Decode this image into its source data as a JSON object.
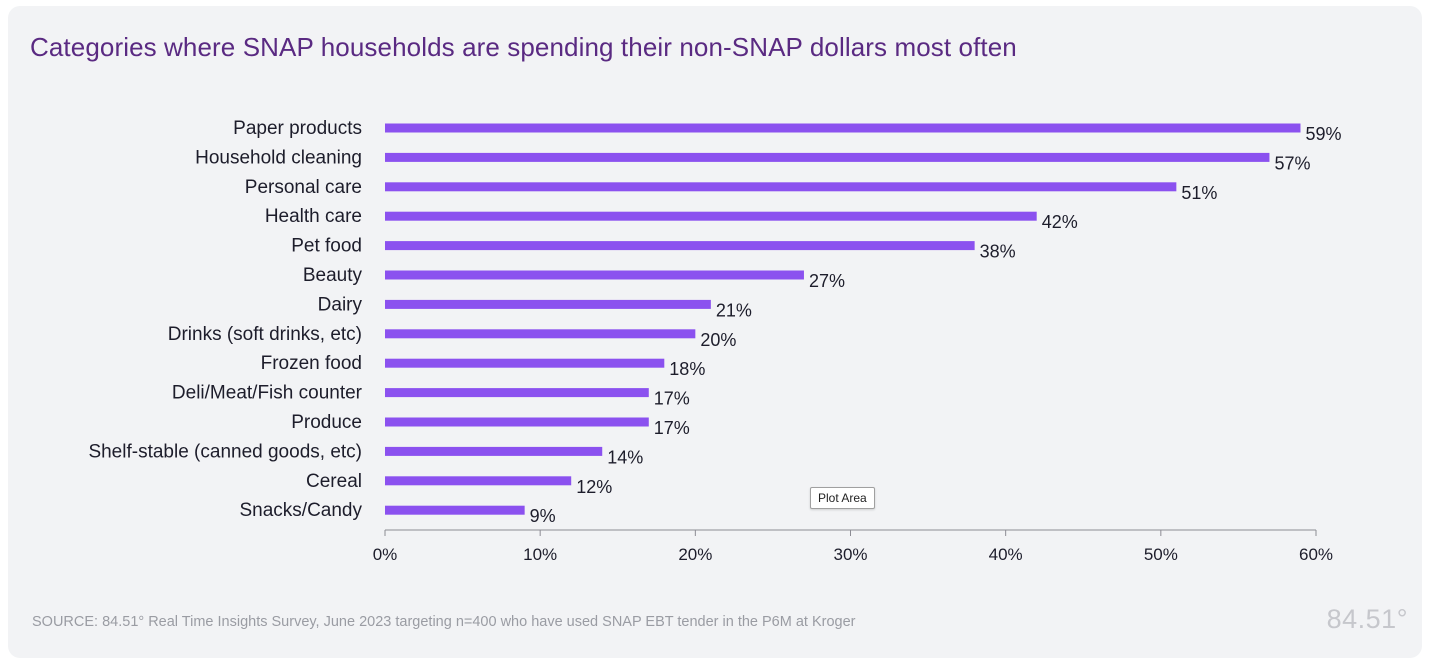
{
  "title": "Categories where SNAP households are spending their non-SNAP dollars most often",
  "source": "SOURCE:  84.51° Real Time Insights Survey, June 2023 targeting n=400 who have used SNAP EBT tender in the P6M at Kroger",
  "logo_text": "84.51°",
  "tooltip": "Plot Area",
  "colors": {
    "bar": "#8b51ef",
    "title": "#5a2a82",
    "axis": "#8c8c94"
  },
  "chart_data": {
    "type": "bar",
    "orientation": "horizontal",
    "title": "Categories where SNAP households are spending their non-SNAP dollars most often",
    "categories": [
      "Paper products",
      "Household cleaning",
      "Personal care",
      "Health care",
      "Pet food",
      "Beauty",
      "Dairy",
      "Drinks (soft drinks, etc)",
      "Frozen food",
      "Deli/Meat/Fish counter",
      "Produce",
      "Shelf-stable (canned goods, etc)",
      "Cereal",
      "Snacks/Candy"
    ],
    "values": [
      59,
      57,
      51,
      42,
      38,
      27,
      21,
      20,
      18,
      17,
      17,
      14,
      12,
      9
    ],
    "value_labels": [
      "59%",
      "57%",
      "51%",
      "42%",
      "38%",
      "27%",
      "21%",
      "20%",
      "18%",
      "17%",
      "17%",
      "14%",
      "12%",
      "9%"
    ],
    "xlim": [
      0,
      60
    ],
    "xticks": [
      0,
      10,
      20,
      30,
      40,
      50,
      60
    ],
    "xtick_labels": [
      "0%",
      "10%",
      "20%",
      "30%",
      "40%",
      "50%",
      "60%"
    ],
    "xlabel": "",
    "ylabel": "",
    "grid": false,
    "legend": "none"
  }
}
